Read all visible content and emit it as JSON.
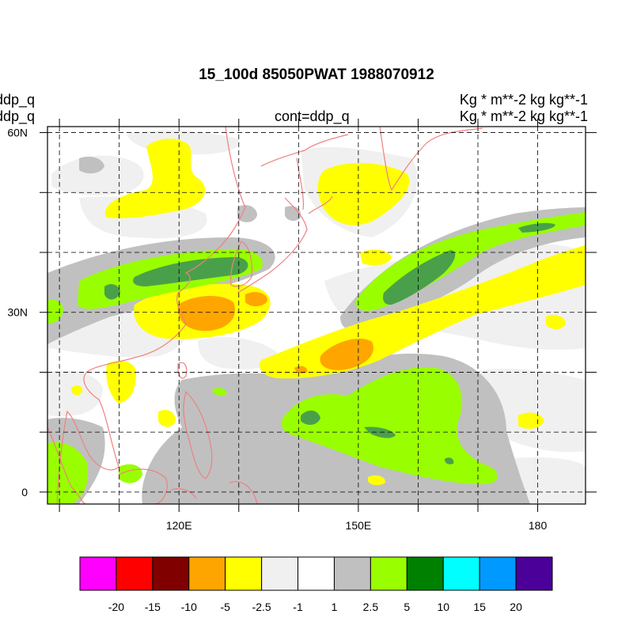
{
  "header": {
    "title": "15_100d 85050PWAT  1988070912",
    "left_line1": "ddp_q",
    "left_line2": "ddp_q",
    "center_line": "cont=ddp_q",
    "right_line1": "Kg  * m**-2 kg kg**-1",
    "right_line2": "Kg  * m**-2 kg kg**-1"
  },
  "map": {
    "lon_range": [
      98,
      188
    ],
    "lat_range": [
      -2,
      61
    ],
    "lon_ticks": [
      {
        "value": 120,
        "label": "120E"
      },
      {
        "value": 150,
        "label": "150E"
      },
      {
        "value": 180,
        "label": "180"
      }
    ],
    "lat_ticks": [
      {
        "value": 60,
        "label": "60N"
      },
      {
        "value": 30,
        "label": "30N"
      },
      {
        "value": 0,
        "label": "0"
      }
    ],
    "grid_lons": [
      100,
      110,
      120,
      130,
      140,
      150,
      160,
      170,
      180
    ],
    "grid_lats": [
      0,
      10,
      20,
      30,
      40,
      50,
      60
    ],
    "coastline_color": "#f08080",
    "grid": "dashed"
  },
  "colorbar": {
    "colors": [
      "#ff00ff",
      "#ff0000",
      "#800000",
      "#ffa500",
      "#ffff00",
      "#f0f0f0",
      "#ffffff",
      "#c0c0c0",
      "#99ff00",
      "#008000",
      "#00ffff",
      "#0099ff",
      "#4b0099"
    ],
    "labels": [
      "-20",
      "-15",
      "-10",
      "-5",
      "-2.5",
      "-1",
      "1",
      "2.5",
      "5",
      "10",
      "15",
      "20"
    ]
  }
}
